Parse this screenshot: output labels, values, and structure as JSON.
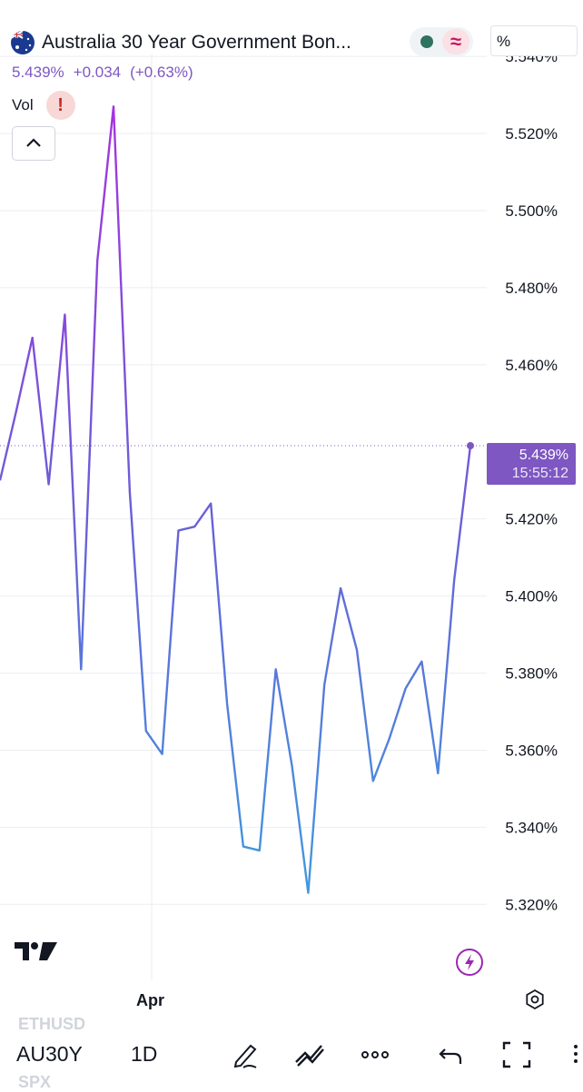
{
  "header": {
    "title": "Australia 30 Year Government Bon...",
    "price": "5.439%",
    "change": "+0.034",
    "change_pct": "(+0.63%)",
    "unit_label": "%",
    "vol_label": "Vol",
    "warning_mark": "!",
    "wave_symbol": "≈"
  },
  "price_tag": {
    "value": "5.439%",
    "time": "15:55:12"
  },
  "colors": {
    "line_top": "#a434e0",
    "line_bottom": "#3f9be0",
    "tag": "#7e57c2"
  },
  "chart_data": {
    "type": "line",
    "y_axis_labels": [
      "5.540%",
      "5.520%",
      "5.500%",
      "5.480%",
      "5.460%",
      "5.440%",
      "5.420%",
      "5.400%",
      "5.380%",
      "5.360%",
      "5.340%",
      "5.320%"
    ],
    "x_axis_labels": [
      "Apr"
    ],
    "ylim": [
      5.305,
      5.5405
    ],
    "values": [
      5.43,
      5.448,
      5.467,
      5.429,
      5.473,
      5.381,
      5.487,
      5.527,
      5.427,
      5.365,
      5.359,
      5.417,
      5.418,
      5.424,
      5.372,
      5.335,
      5.334,
      5.381,
      5.356,
      5.323,
      5.377,
      5.402,
      5.386,
      5.352,
      5.363,
      5.376,
      5.383,
      5.354,
      5.404,
      5.439
    ],
    "last_value": 5.439
  },
  "watermarks": {
    "top": "ETHUSD",
    "bottom": "SPX"
  },
  "bottom_bar": {
    "symbol": "AU30Y",
    "interval": "1D"
  }
}
